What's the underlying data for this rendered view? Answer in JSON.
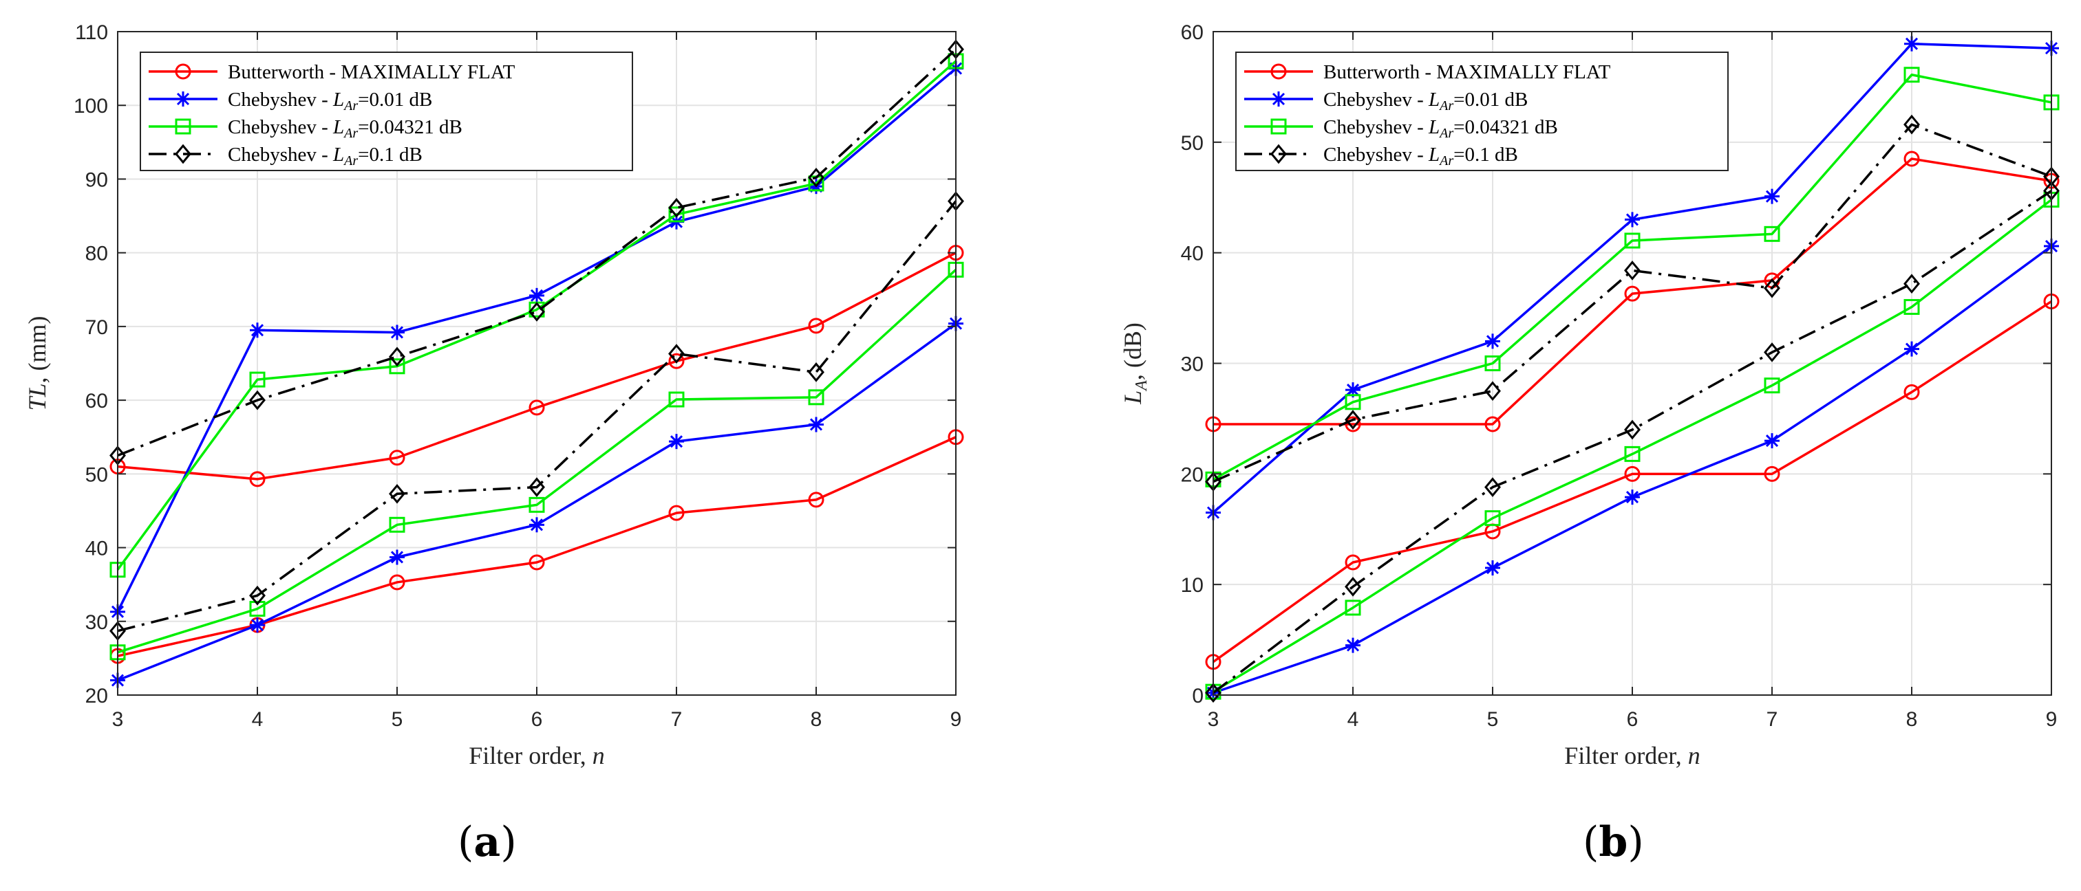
{
  "figure": {
    "panel_labels": [
      {
        "open": "(",
        "letter": "a",
        "close": ")"
      },
      {
        "open": "(",
        "letter": "b",
        "close": ")"
      }
    ]
  },
  "chart_data": [
    {
      "type": "line",
      "panel": "a",
      "xlabel": "Filter order, n",
      "xlabel_text": "Filter order, ",
      "xlabel_var": "n",
      "ylabel": "TL, (mm)",
      "ylabel_var": "TL",
      "ylabel_text": ", (mm)",
      "xlim": [
        3,
        9
      ],
      "ylim": [
        20,
        110
      ],
      "xticks": [
        3,
        4,
        5,
        6,
        7,
        8,
        9
      ],
      "yticks": [
        20,
        30,
        40,
        50,
        60,
        70,
        80,
        90,
        100,
        110
      ],
      "grid": true,
      "legend_position": "top-left",
      "x": [
        3,
        4,
        5,
        6,
        7,
        8,
        9
      ],
      "series": [
        {
          "name": "Butterworth - MAXIMALLY FLAT",
          "legend_text": "Butterworth - MAXIMALLY FLAT",
          "color": "#ff0000",
          "marker": "circle",
          "dash": "solid",
          "lines": [
            [
              51,
              49.3,
              52.2,
              59,
              65.3,
              70.1,
              80
            ],
            [
              25.3,
              29.5,
              35.3,
              38,
              44.7,
              46.5,
              55
            ]
          ]
        },
        {
          "name": "Chebyshev - L_Ar=0.01 dB",
          "legend_text": "Chebyshev - ",
          "legend_sub": "Ar",
          "legend_val": "=0.01 dB",
          "color": "#0000ff",
          "marker": "asterisk",
          "dash": "solid",
          "lines": [
            [
              31.3,
              69.5,
              69.2,
              74.2,
              84.2,
              89,
              105
            ],
            [
              22,
              29.5,
              38.7,
              43.1,
              54.4,
              56.7,
              70.4
            ]
          ]
        },
        {
          "name": "Chebyshev - L_Ar=0.04321 dB",
          "legend_text": "Chebyshev - ",
          "legend_sub": "Ar",
          "legend_val": "=0.04321 dB",
          "color": "#00ee00",
          "marker": "square",
          "dash": "solid",
          "lines": [
            [
              37,
              62.8,
              64.6,
              72.3,
              85.2,
              89.4,
              106
            ],
            [
              25.8,
              31.7,
              43.1,
              45.8,
              60.1,
              60.4,
              77.7
            ]
          ]
        },
        {
          "name": "Chebyshev - L_Ar=0.1 dB",
          "legend_text": "Chebyshev - ",
          "legend_sub": "Ar",
          "legend_val": "=0.1 dB",
          "color": "#000000",
          "marker": "diamond",
          "dash": "dashdot",
          "lines": [
            [
              52.5,
              60,
              65.9,
              72,
              86.1,
              90.2,
              107.6
            ],
            [
              28.7,
              33.5,
              47.3,
              48.2,
              66.3,
              63.8,
              87
            ]
          ]
        }
      ]
    },
    {
      "type": "line",
      "panel": "b",
      "xlabel": "Filter order, n",
      "xlabel_text": "Filter order, ",
      "xlabel_var": "n",
      "ylabel": "L_A, (dB)",
      "ylabel_var": "L",
      "ylabel_sub": "A",
      "ylabel_text": ", (dB)",
      "xlim": [
        3,
        9
      ],
      "ylim": [
        0,
        60
      ],
      "xticks": [
        3,
        4,
        5,
        6,
        7,
        8,
        9
      ],
      "yticks": [
        0,
        10,
        20,
        30,
        40,
        50,
        60
      ],
      "grid": true,
      "legend_position": "top-left",
      "x": [
        3,
        4,
        5,
        6,
        7,
        8,
        9
      ],
      "series": [
        {
          "name": "Butterworth - MAXIMALLY FLAT",
          "legend_text": "Butterworth - MAXIMALLY FLAT",
          "color": "#ff0000",
          "marker": "circle",
          "dash": "solid",
          "lines": [
            [
              24.5,
              24.5,
              24.5,
              36.3,
              37.5,
              48.5,
              46.5
            ],
            [
              3,
              12,
              14.8,
              20,
              20,
              27.4,
              35.6
            ]
          ]
        },
        {
          "name": "Chebyshev - L_Ar=0.01 dB",
          "legend_text": "Chebyshev - ",
          "legend_sub": "Ar",
          "legend_val": "=0.01 dB",
          "color": "#0000ff",
          "marker": "asterisk",
          "dash": "solid",
          "lines": [
            [
              16.5,
              27.6,
              32,
              43,
              45.1,
              58.9,
              58.5
            ],
            [
              0.2,
              4.5,
              11.5,
              17.9,
              23,
              31.3,
              40.6
            ]
          ]
        },
        {
          "name": "Chebyshev - L_Ar=0.04321 dB",
          "legend_text": "Chebyshev - ",
          "legend_sub": "Ar",
          "legend_val": "=0.04321 dB",
          "color": "#00ee00",
          "marker": "square",
          "dash": "solid",
          "lines": [
            [
              19.5,
              26.5,
              30,
              41.1,
              41.7,
              56.1,
              53.6
            ],
            [
              0.3,
              7.9,
              16,
              21.8,
              28,
              35.1,
              44.8
            ]
          ]
        },
        {
          "name": "Chebyshev - L_Ar=0.1 dB",
          "legend_text": "Chebyshev - ",
          "legend_sub": "Ar",
          "legend_val": "=0.1 dB",
          "color": "#000000",
          "marker": "diamond",
          "dash": "dashdot",
          "lines": [
            [
              19.3,
              24.9,
              27.5,
              38.4,
              36.8,
              51.6,
              46.9
            ],
            [
              0.2,
              9.8,
              18.8,
              24,
              31,
              37.2,
              45.6
            ]
          ]
        }
      ]
    }
  ]
}
